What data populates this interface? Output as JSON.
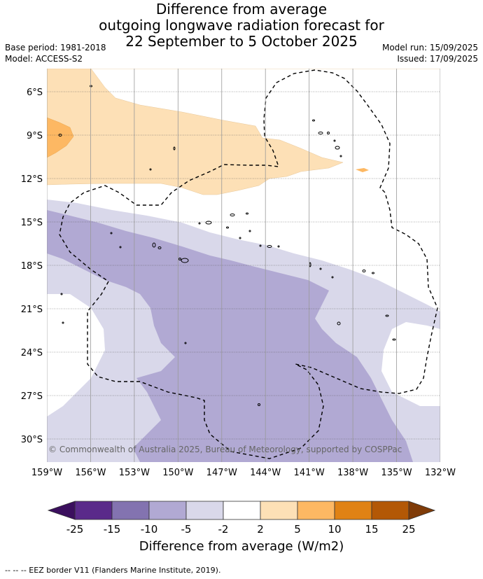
{
  "title": {
    "line1": "Difference from average",
    "line2": "outgoing longwave radiation forecast for",
    "line3": "22 September to 5 October 2025"
  },
  "meta": {
    "base_period": "Base period: 1981-2018",
    "model": "Model: ACCESS-S2",
    "model_run": "Model run: 15/09/2025",
    "issued": "Issued: 17/09/2025"
  },
  "copyright": "© Commonwealth of Australia 2025, Bureau of Meteorology, supported by COSPPac",
  "axes": {
    "lat_labels": [
      "6°S",
      "9°S",
      "12°S",
      "15°S",
      "18°S",
      "21°S",
      "24°S",
      "27°S",
      "30°S"
    ],
    "lon_labels": [
      "159°W",
      "156°W",
      "153°W",
      "150°W",
      "147°W",
      "144°W",
      "141°W",
      "138°W",
      "135°W",
      "132°W"
    ]
  },
  "colorbar": {
    "title": "Difference from average (W/m2)",
    "ticks": [
      "-25",
      "-15",
      "-10",
      "-5",
      "-2",
      "2",
      "5",
      "10",
      "15",
      "25"
    ],
    "colors": {
      "below_min": "#3b0f5e",
      "bins": [
        "#5a2a8a",
        "#8373b0",
        "#b1a9d3",
        "#d9d8ea",
        "#ffffff",
        "#fde0b6",
        "#fdb863",
        "#e08214",
        "#b35806"
      ],
      "above_max": "#7f3b08"
    }
  },
  "footer": "-- -- -- EEZ border V11 (Flanders Marine Institute, 2019)."
}
